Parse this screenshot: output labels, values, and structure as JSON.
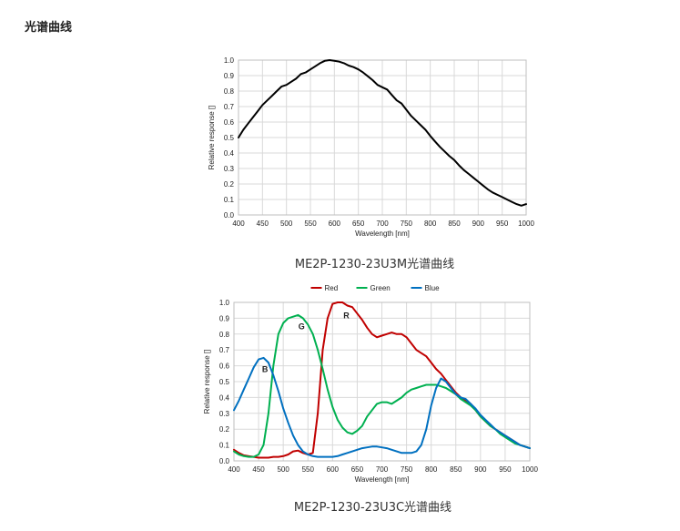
{
  "page": {
    "section_title": "光谱曲线"
  },
  "chart_data": [
    {
      "type": "line",
      "title": "",
      "caption": "ME2P-1230-23U3M光谱曲线",
      "xlabel": "Wavelength [nm]",
      "ylabel": "Relative response []",
      "xlim": [
        400,
        1000
      ],
      "ylim": [
        0,
        1.0
      ],
      "x_ticks": [
        "400",
        "450",
        "500",
        "550",
        "600",
        "650",
        "700",
        "750",
        "800",
        "850",
        "900",
        "950",
        "1000"
      ],
      "y_ticks": [
        "0.0",
        "0.1",
        "0.2",
        "0.3",
        "0.4",
        "0.5",
        "0.6",
        "0.7",
        "0.8",
        "0.9",
        "1.0"
      ],
      "grid": true,
      "legend": "none",
      "series": [
        {
          "color": "#000000",
          "x": [
            400,
            410,
            420,
            430,
            440,
            450,
            460,
            470,
            480,
            490,
            500,
            510,
            520,
            530,
            540,
            550,
            560,
            570,
            580,
            590,
            600,
            610,
            620,
            630,
            640,
            650,
            660,
            670,
            680,
            690,
            700,
            710,
            720,
            730,
            740,
            750,
            760,
            770,
            780,
            790,
            800,
            810,
            820,
            830,
            840,
            850,
            860,
            870,
            880,
            890,
            900,
            910,
            920,
            930,
            940,
            950,
            960,
            970,
            980,
            990,
            1000
          ],
          "y": [
            0.5,
            0.55,
            0.59,
            0.63,
            0.67,
            0.71,
            0.74,
            0.77,
            0.8,
            0.83,
            0.84,
            0.86,
            0.88,
            0.91,
            0.92,
            0.94,
            0.96,
            0.98,
            0.995,
            1.0,
            0.995,
            0.99,
            0.98,
            0.965,
            0.955,
            0.94,
            0.92,
            0.895,
            0.87,
            0.84,
            0.825,
            0.81,
            0.775,
            0.74,
            0.72,
            0.68,
            0.64,
            0.61,
            0.58,
            0.55,
            0.51,
            0.475,
            0.44,
            0.41,
            0.38,
            0.355,
            0.32,
            0.29,
            0.265,
            0.24,
            0.215,
            0.19,
            0.165,
            0.145,
            0.13,
            0.115,
            0.1,
            0.085,
            0.07,
            0.06,
            0.07
          ]
        }
      ]
    },
    {
      "type": "line",
      "title": "",
      "caption": "ME2P-1230-23U3C光谱曲线",
      "xlabel": "Wavelength [nm]",
      "ylabel": "Relative response []",
      "xlim": [
        400,
        1000
      ],
      "ylim": [
        0,
        1.0
      ],
      "x_ticks": [
        "400",
        "450",
        "500",
        "550",
        "600",
        "650",
        "700",
        "750",
        "800",
        "850",
        "900",
        "950",
        "1000"
      ],
      "y_ticks": [
        "0.0",
        "0.1",
        "0.2",
        "0.3",
        "0.4",
        "0.5",
        "0.6",
        "0.7",
        "0.8",
        "0.9",
        "1.0"
      ],
      "grid": true,
      "legend": "top",
      "annotations": [
        {
          "text": "B",
          "x": 463,
          "y": 0.56
        },
        {
          "text": "G",
          "x": 537,
          "y": 0.83
        },
        {
          "text": "R",
          "x": 628,
          "y": 0.9
        }
      ],
      "series": [
        {
          "name": "Red",
          "color": "#c00000",
          "x": [
            400,
            410,
            420,
            430,
            440,
            450,
            460,
            470,
            480,
            490,
            500,
            510,
            520,
            530,
            540,
            550,
            560,
            570,
            580,
            590,
            600,
            610,
            620,
            630,
            640,
            650,
            660,
            670,
            680,
            690,
            700,
            710,
            720,
            730,
            740,
            750,
            760,
            770,
            780,
            790,
            800,
            810,
            820,
            830,
            840,
            850,
            860,
            870,
            880,
            890,
            900,
            910,
            920,
            930,
            940,
            950,
            960,
            970,
            980,
            990,
            1000
          ],
          "y": [
            0.07,
            0.05,
            0.035,
            0.03,
            0.025,
            0.02,
            0.02,
            0.02,
            0.025,
            0.025,
            0.03,
            0.04,
            0.06,
            0.065,
            0.05,
            0.04,
            0.05,
            0.3,
            0.7,
            0.9,
            0.99,
            1.0,
            1.0,
            0.98,
            0.97,
            0.93,
            0.89,
            0.84,
            0.8,
            0.78,
            0.79,
            0.8,
            0.81,
            0.8,
            0.8,
            0.78,
            0.74,
            0.7,
            0.68,
            0.66,
            0.62,
            0.58,
            0.55,
            0.51,
            0.47,
            0.43,
            0.4,
            0.38,
            0.36,
            0.32,
            0.28,
            0.25,
            0.22,
            0.2,
            0.18,
            0.16,
            0.14,
            0.12,
            0.1,
            0.09,
            0.08
          ]
        },
        {
          "name": "Green",
          "color": "#00b050",
          "x": [
            400,
            410,
            420,
            430,
            440,
            450,
            460,
            470,
            480,
            490,
            500,
            510,
            520,
            530,
            540,
            550,
            560,
            570,
            580,
            590,
            600,
            610,
            620,
            630,
            640,
            650,
            660,
            670,
            680,
            690,
            700,
            710,
            720,
            730,
            740,
            750,
            760,
            770,
            780,
            790,
            800,
            810,
            820,
            830,
            840,
            850,
            860,
            870,
            880,
            890,
            900,
            910,
            920,
            930,
            940,
            950,
            960,
            970,
            980,
            990,
            1000
          ],
          "y": [
            0.06,
            0.04,
            0.03,
            0.025,
            0.025,
            0.04,
            0.1,
            0.3,
            0.6,
            0.8,
            0.87,
            0.9,
            0.91,
            0.92,
            0.9,
            0.86,
            0.8,
            0.7,
            0.58,
            0.45,
            0.34,
            0.26,
            0.21,
            0.18,
            0.17,
            0.19,
            0.22,
            0.28,
            0.32,
            0.36,
            0.37,
            0.37,
            0.36,
            0.38,
            0.4,
            0.43,
            0.45,
            0.46,
            0.47,
            0.48,
            0.48,
            0.48,
            0.47,
            0.46,
            0.44,
            0.42,
            0.39,
            0.37,
            0.35,
            0.32,
            0.28,
            0.25,
            0.22,
            0.2,
            0.17,
            0.15,
            0.13,
            0.11,
            0.1,
            0.09,
            0.08
          ]
        },
        {
          "name": "Blue",
          "color": "#0070c0",
          "x": [
            400,
            410,
            420,
            430,
            440,
            450,
            460,
            470,
            480,
            490,
            500,
            510,
            520,
            530,
            540,
            550,
            560,
            570,
            580,
            590,
            600,
            610,
            620,
            630,
            640,
            650,
            660,
            670,
            680,
            690,
            700,
            710,
            720,
            730,
            740,
            750,
            760,
            770,
            780,
            790,
            800,
            810,
            820,
            830,
            840,
            850,
            860,
            870,
            880,
            890,
            900,
            910,
            920,
            930,
            940,
            950,
            960,
            970,
            980,
            990,
            1000
          ],
          "y": [
            0.32,
            0.38,
            0.45,
            0.52,
            0.59,
            0.64,
            0.65,
            0.62,
            0.54,
            0.44,
            0.33,
            0.24,
            0.16,
            0.1,
            0.06,
            0.04,
            0.03,
            0.025,
            0.025,
            0.025,
            0.025,
            0.03,
            0.04,
            0.05,
            0.06,
            0.07,
            0.08,
            0.085,
            0.09,
            0.09,
            0.085,
            0.08,
            0.07,
            0.06,
            0.05,
            0.05,
            0.05,
            0.06,
            0.1,
            0.2,
            0.35,
            0.46,
            0.52,
            0.5,
            0.46,
            0.42,
            0.4,
            0.39,
            0.36,
            0.33,
            0.29,
            0.26,
            0.23,
            0.2,
            0.18,
            0.16,
            0.14,
            0.12,
            0.1,
            0.09,
            0.08
          ]
        }
      ]
    }
  ]
}
